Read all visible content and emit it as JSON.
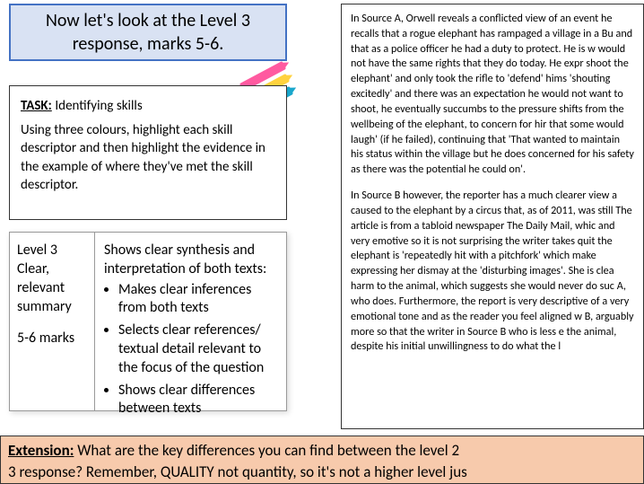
{
  "header": {
    "text": "Now let's look at the Level 3 response, marks 5-6."
  },
  "task": {
    "title": "TASK:",
    "label": " Identifying skills",
    "body": "Using three colours, highlight each skill descriptor and then highlight the evidence in the example of where they've met the skill descriptor."
  },
  "rubric": {
    "level_line1": "Level 3",
    "level_line2": "Clear,",
    "level_line3": "relevant",
    "level_line4": "summary",
    "marks": "5-6 marks",
    "intro": "Shows clear synthesis and interpretation of both texts:",
    "bullets": [
      "Makes clear inferences from both texts",
      "Selects clear references/ textual detail relevant to the focus of the question",
      "Shows clear differences between texts"
    ]
  },
  "source": {
    "p1": "In Source A, Orwell reveals a conflicted view of an event he recalls that a rogue elephant has rampaged a village in a Bu and that as a police officer he had a duty to protect. He is w would not have the same rights that they do today. He expr shoot the elephant' and only took the rifle to 'defend' hims 'shouting excitedly' and there was an expectation he would not want to shoot, he eventually succumbs to the pressure shifts from the wellbeing of the elephant, to concern for hir that some would laugh' (if he failed), continuing that 'That wanted to maintain his status within the village but he does concerned for his safety as there was the potential he could on'.",
    "p2": "In Source B however, the reporter has a much clearer view a caused to the elephant by a circus that, as of 2011, was still The article is from a tabloid newspaper The Daily Mail, whic and very emotive so it is not surprising the writer takes quit the elephant is 'repeatedly hit with a pitchfork' which make expressing her dismay at the 'disturbing images'. She is clea harm to the animal, which suggests she would never do suc A, who does. Furthermore, the report is very descriptive of a very emotional tone and as the reader you feel aligned w B, arguably more so that the writer in Source B who is less e the animal, despite his initial unwillingness to do what the l"
  },
  "extension": {
    "label": "Extension:",
    "line1": " What are the key differences you can find between the level 2",
    "line2": "3 response? Remember, QUALITY not quantity, so it's not a higher level jus"
  },
  "colors": {
    "header_bg": "#d9e2f3",
    "header_border": "#4472c4",
    "extension_bg": "#f7caac",
    "pen_pink": "#ff5aa0",
    "pen_yellow": "#ffd23f",
    "pen_blue": "#1aa7cc"
  }
}
